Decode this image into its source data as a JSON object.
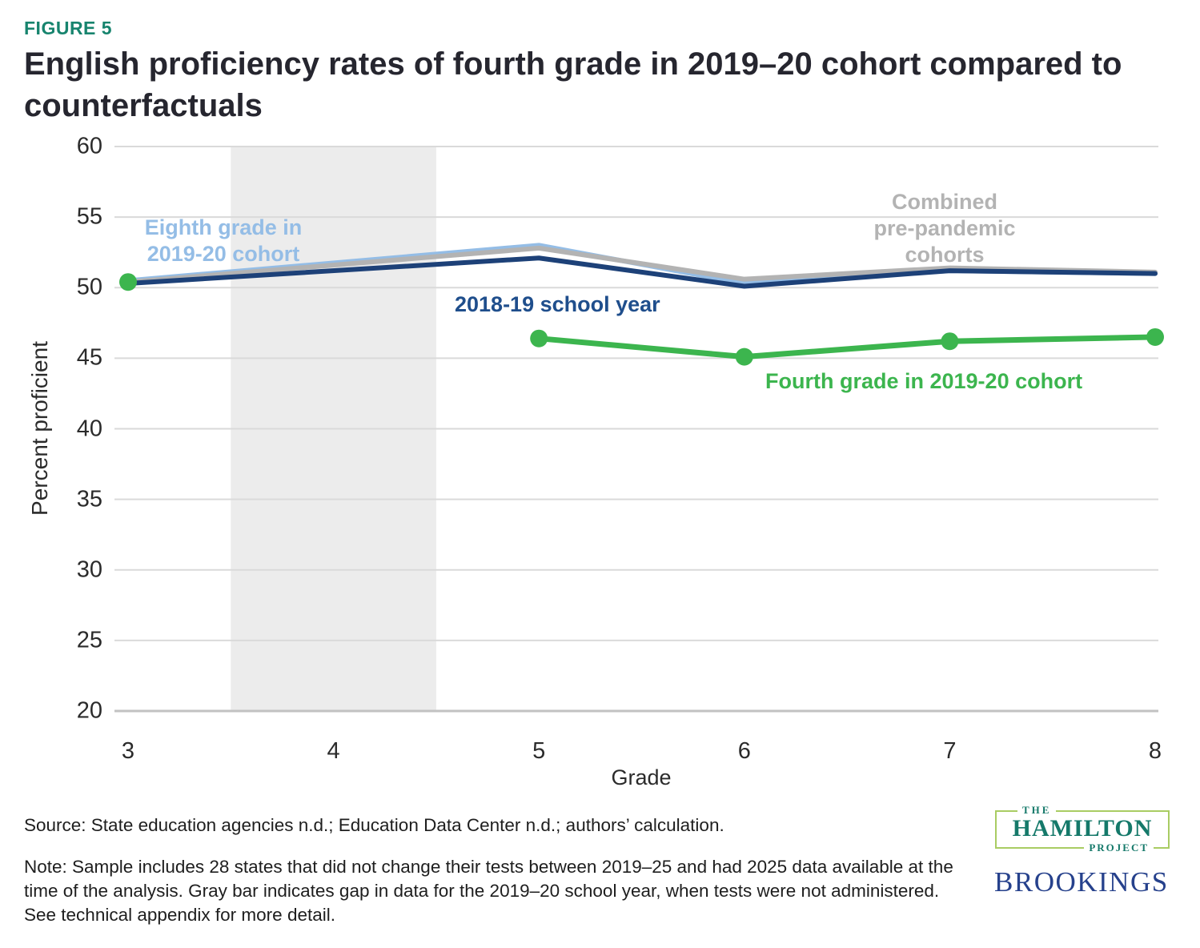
{
  "header": {
    "figure_label": "FIGURE 5",
    "title": "English proficiency rates of fourth grade in 2019–20 cohort compared to counterfactuals",
    "figure_label_color": "#17846e",
    "title_color": "#26262f"
  },
  "chart_data": {
    "type": "line",
    "title": "English proficiency rates of fourth grade in 2019–20 cohort compared to counterfactuals",
    "xlabel": "Grade",
    "ylabel": "Percent proficient",
    "x": [
      3,
      5,
      6,
      7,
      8
    ],
    "xticks": [
      3,
      4,
      5,
      6,
      7,
      8
    ],
    "yticks": [
      20,
      25,
      30,
      35,
      40,
      45,
      50,
      55,
      60
    ],
    "ylim": [
      20,
      60
    ],
    "xlim": [
      3,
      8
    ],
    "grid": "horizontal",
    "legend_position": "inline-annotations",
    "gap_band": {
      "x_start": 3.5,
      "x_end": 4.5,
      "color": "#ececec",
      "meaning": "gap in data for the 2019–20 school year"
    },
    "series": [
      {
        "name": "Eighth grade in 2019-20 cohort",
        "color": "#94bde6",
        "line_width": 6,
        "markers": false,
        "isolated_first_point": false,
        "values": [
          50.5,
          53.0,
          50.3,
          51.2,
          51.0
        ]
      },
      {
        "name": "Combined pre-pandemic cohorts",
        "color": "#b3b3b3",
        "line_width": 6,
        "markers": false,
        "isolated_first_point": false,
        "values": [
          50.4,
          52.8,
          50.6,
          51.4,
          51.1
        ]
      },
      {
        "name": "2018-19 school year",
        "color": "#1d4178",
        "line_width": 6,
        "markers": false,
        "isolated_first_point": false,
        "values": [
          50.3,
          52.1,
          50.1,
          51.2,
          51.0
        ]
      },
      {
        "name": "Fourth grade in 2019-20 cohort",
        "color": "#3cb54e",
        "line_width": 7,
        "markers": true,
        "marker_radius": 11,
        "isolated_first_point": true,
        "values": [
          50.4,
          46.4,
          45.1,
          46.2,
          46.5
        ]
      }
    ],
    "gridline_color": "#dadada",
    "baseline_color": "#c2c2c2"
  },
  "annotations": {
    "eighth_grade": {
      "text": "Eighth grade in\n2019-20 cohort",
      "color": "#94bde6"
    },
    "combined": {
      "text": "Combined\npre-pandemic\ncohorts",
      "color": "#b3b3b3"
    },
    "school_year": {
      "text": "2018-19 school year",
      "color": "#1f4e8c"
    },
    "fourth_grade": {
      "text": "Fourth grade in 2019-20 cohort",
      "color": "#3cb54e"
    }
  },
  "footer": {
    "source": "Source: State education agencies n.d.; Education Data Center n.d.; authors’ calculation.",
    "note": "Note: Sample includes 28 states that did not change their tests between 2019–25 and had 2025 data available at the time of the analysis. Gray bar indicates gap in data for the 2019–20 school year, when tests were not administered. See technical appendix for more detail.",
    "logo_hamilton": {
      "top": "THE",
      "main": "HAMILTON",
      "bottom": "PROJECT",
      "text_color": "#15796a",
      "border_color": "#a9cc63"
    },
    "logo_brookings": "BROOKINGS",
    "brookings_color": "#26418c"
  }
}
